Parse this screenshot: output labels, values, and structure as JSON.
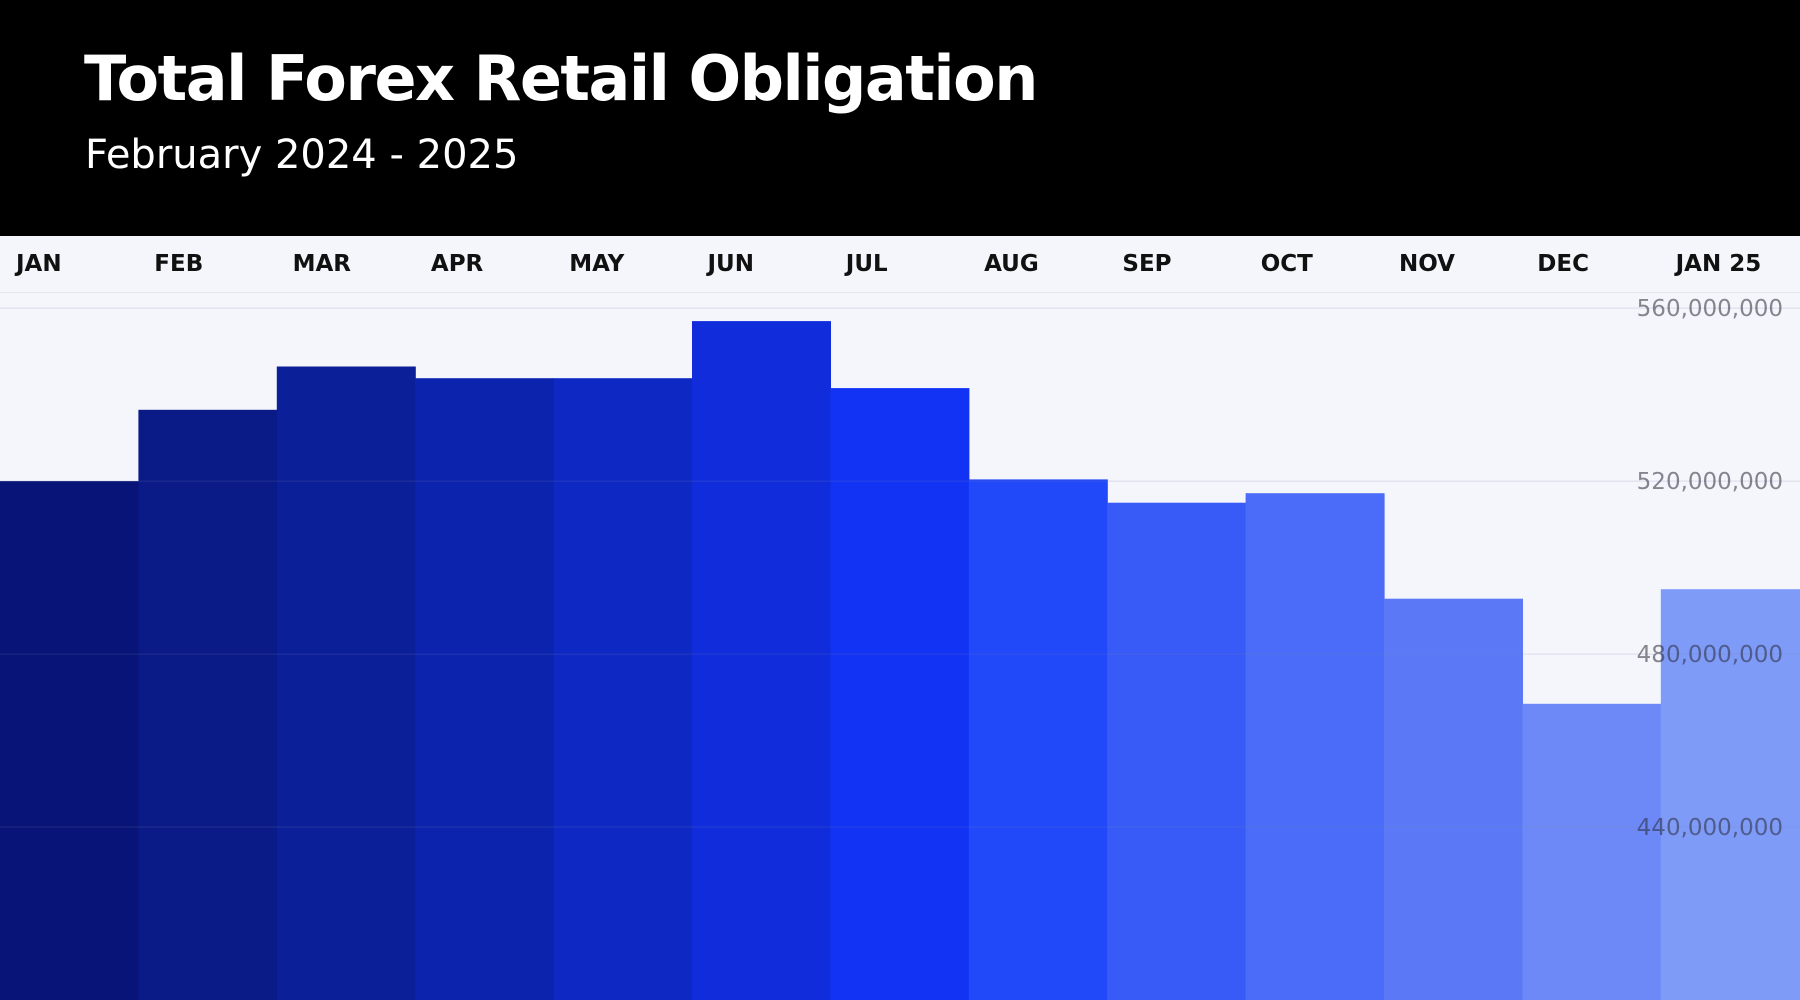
{
  "title": "Total Forex Retail Obligation",
  "subtitle": "February 2024 - 2025",
  "chart_data": {
    "type": "bar",
    "categories": [
      "JAN",
      "FEB",
      "MAR",
      "APR",
      "MAY",
      "JUN",
      "JUL",
      "AUG",
      "SEP",
      "OCT",
      "NOV",
      "DEC",
      "JAN 25"
    ],
    "values": [
      520000000,
      536500000,
      546500000,
      543800000,
      543800000,
      557000000,
      541500000,
      520400000,
      515000000,
      517200000,
      492800000,
      468500000,
      495000000
    ],
    "ylim": [
      400000000,
      563500000
    ],
    "yticks": [
      440000000,
      480000000,
      520000000,
      560000000
    ],
    "ytick_labels": [
      "440,000,000",
      "480,000,000",
      "520,000,000",
      "560,000,000"
    ],
    "bar_colors": [
      "#081477",
      "#0a1a87",
      "#0b1f98",
      "#0c23ad",
      "#0e28c3",
      "#112ddb",
      "#1232f4",
      "#2148f9",
      "#385bf8",
      "#4a6cf8",
      "#5b79f7",
      "#6d89f7",
      "#7f9bf8"
    ],
    "background": "#f5f6fc",
    "grid": true
  }
}
